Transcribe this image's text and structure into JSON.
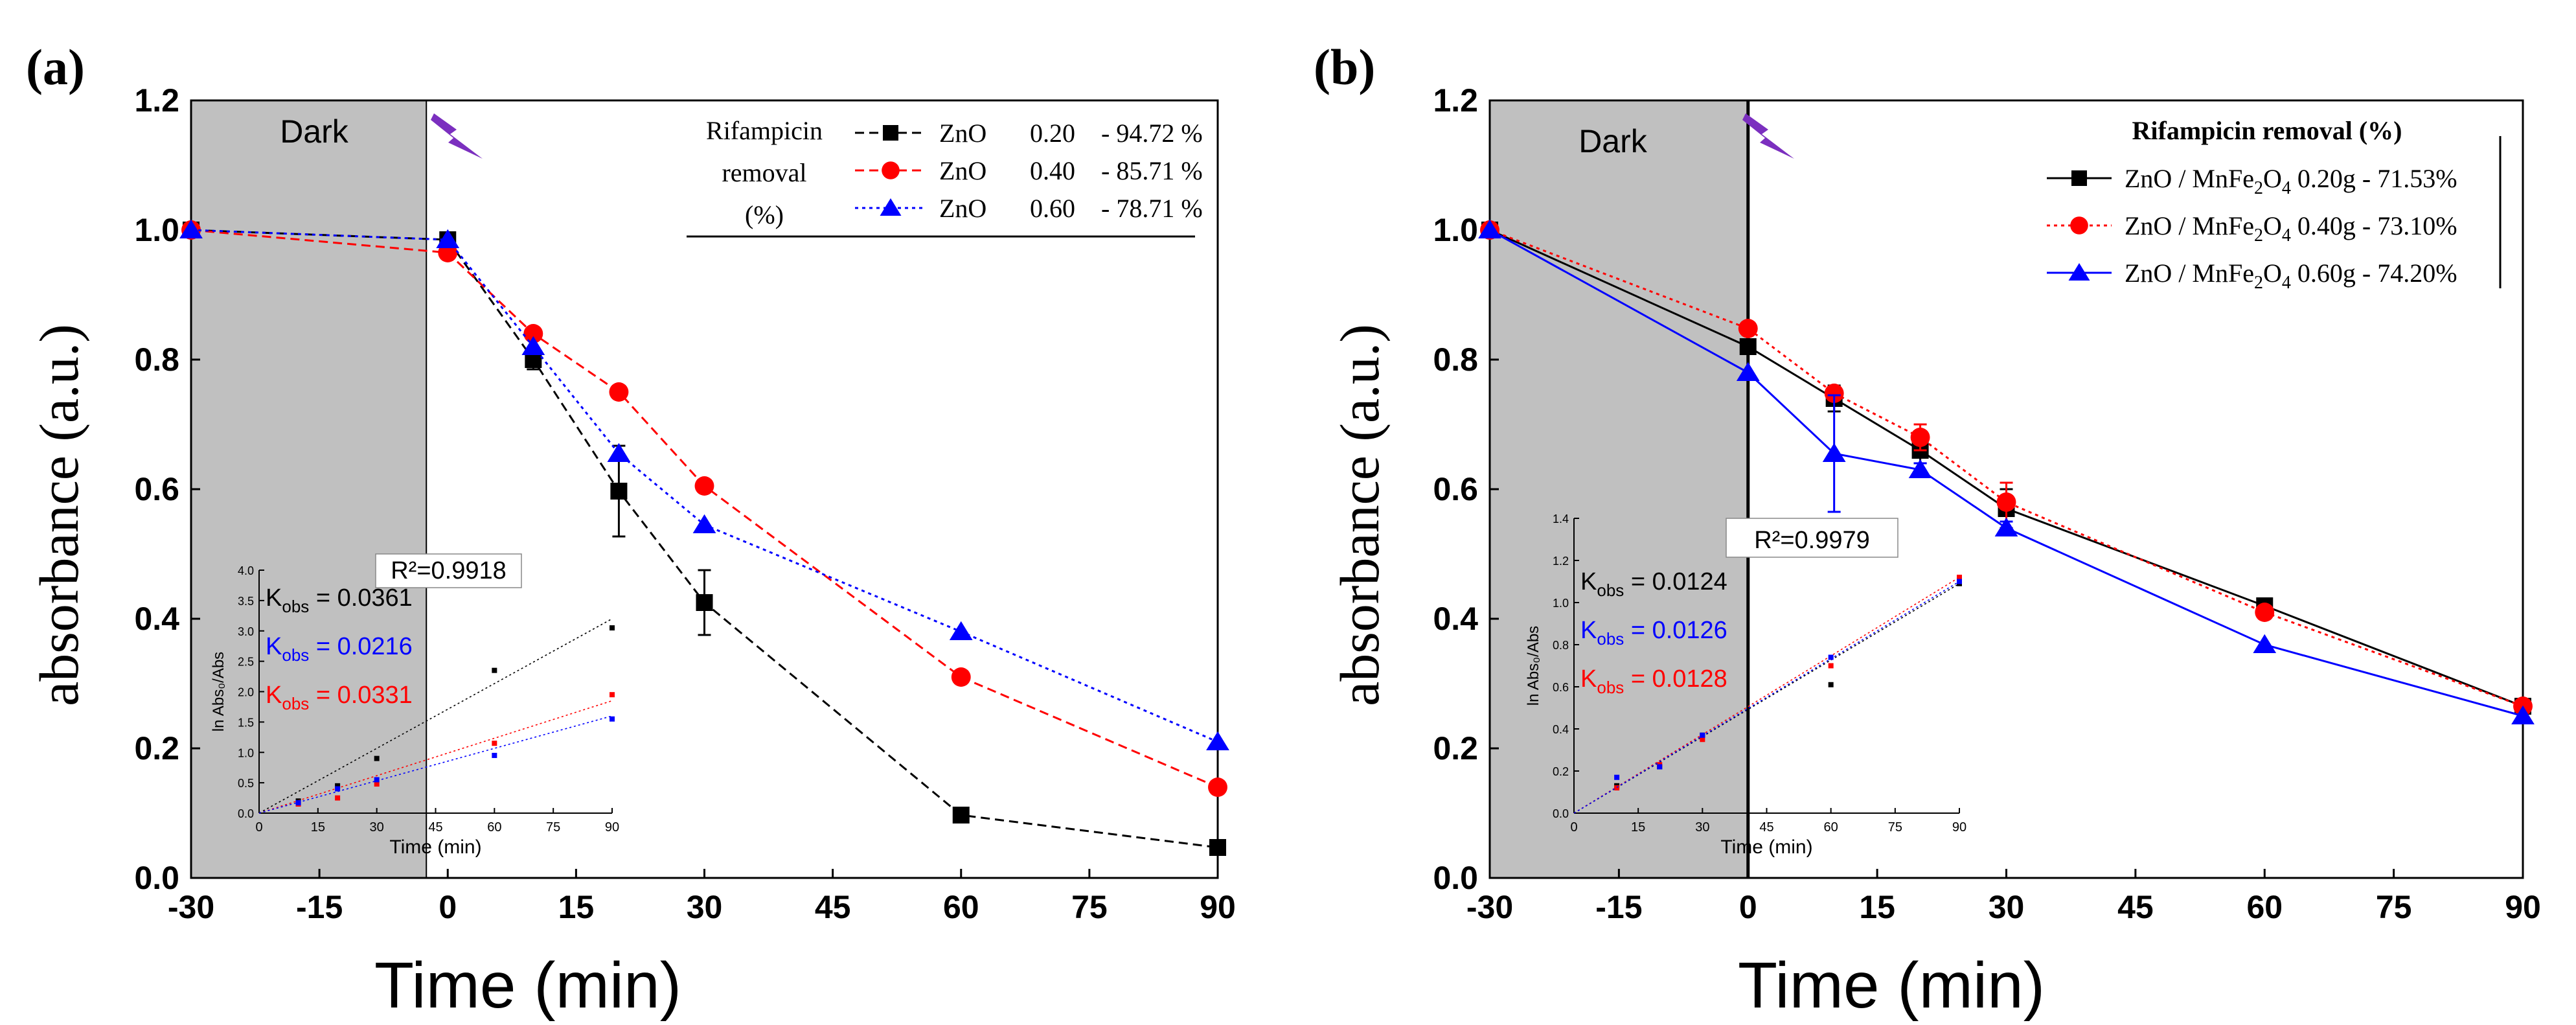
{
  "panels": [
    {
      "panel_label": "(a)",
      "dark_label": "Dark",
      "legend": {
        "header": [
          "Rifampicin",
          "removal",
          "(%)"
        ],
        "entries": [
          {
            "name": "ZnO",
            "mass": "0.20",
            "removal": "- 94.72 %"
          },
          {
            "name": "ZnO",
            "mass": "0.40",
            "removal": "- 85.71 %"
          },
          {
            "name": "ZnO",
            "mass": "0.60",
            "removal": "- 78.71 %"
          }
        ]
      },
      "inset": {
        "r2": "R²=0.9918",
        "kobs": [
          {
            "label": "K",
            "sub": "obs",
            "value": " = 0.0361",
            "color": "#000000"
          },
          {
            "label": "K",
            "sub": "obs",
            "value": " = 0.0216",
            "color": "#0000ff"
          },
          {
            "label": "K",
            "sub": "obs",
            "value": " = 0.0331",
            "color": "#ff0000"
          }
        ],
        "xlabel": "Time (min)",
        "ylabel": "ln Abs₀/Abs",
        "xticks": [
          0,
          15,
          30,
          45,
          60,
          75,
          90
        ],
        "yticks": [
          "0.0",
          "0.5",
          "1.0",
          "1.5",
          "2.0",
          "2.5",
          "3.0",
          "3.5",
          "4.0"
        ]
      }
    },
    {
      "panel_label": "(b)",
      "dark_label": "Dark",
      "legend": {
        "header": [
          "Rifampicin removal (%)"
        ],
        "entries": [
          {
            "name": "ZnO / MnFe",
            "formula_sub1": "2",
            "mid": "O",
            "formula_sub2": "4",
            "mass": " 0.20g",
            "removal": " - 71.53%"
          },
          {
            "name": "ZnO / MnFe",
            "formula_sub1": "2",
            "mid": "O",
            "formula_sub2": "4",
            "mass": " 0.40g",
            "removal": " - 73.10%"
          },
          {
            "name": "ZnO / MnFe",
            "formula_sub1": "2",
            "mid": "O",
            "formula_sub2": "4",
            "mass": " 0.60g",
            "removal": " - 74.20%"
          }
        ]
      },
      "inset": {
        "r2": "R²=0.9979",
        "kobs": [
          {
            "label": "K",
            "sub": "obs",
            "value": " = 0.0124",
            "color": "#000000"
          },
          {
            "label": "K",
            "sub": "obs",
            "value": " = 0.0126",
            "color": "#0000ff"
          },
          {
            "label": "K",
            "sub": "obs",
            "value": " = 0.0128",
            "color": "#ff0000"
          }
        ],
        "xlabel": "Time (min)",
        "ylabel": "ln Abs₀/Abs",
        "xticks": [
          0,
          15,
          30,
          45,
          60,
          75,
          90
        ],
        "yticks": [
          "0.0",
          "0.2",
          "0.4",
          "0.6",
          "0.8",
          "1.0",
          "1.2",
          "1.4"
        ]
      }
    }
  ],
  "chart_data": [
    {
      "type": "line",
      "title": "(a)",
      "xlabel": "Time (min)",
      "ylabel": "absorbance (a.u.)",
      "xlim": [
        -30,
        90
      ],
      "ylim": [
        0.0,
        1.2
      ],
      "xticks": [
        -30,
        -15,
        0,
        15,
        30,
        45,
        60,
        75,
        90
      ],
      "yticks": [
        0.0,
        0.2,
        0.4,
        0.6,
        0.8,
        1.0,
        1.2
      ],
      "dark_region": [
        -30,
        -2.5
      ],
      "x": [
        -30,
        0,
        10,
        20,
        30,
        60,
        90
      ],
      "series": [
        {
          "name": "ZnO 0.20",
          "color": "#000000",
          "marker": "square",
          "dash": "dash",
          "values": [
            1.0,
            0.985,
            0.8,
            0.597,
            0.425,
            0.097,
            0.047
          ],
          "errors": [
            0,
            0.01,
            0.015,
            0.07,
            0.05,
            0.005,
            0.005
          ]
        },
        {
          "name": "ZnO 0.40",
          "color": "#ff0000",
          "marker": "circle",
          "dash": "dash",
          "values": [
            1.0,
            0.965,
            0.84,
            0.75,
            0.605,
            0.31,
            0.14
          ],
          "errors": [
            0,
            0.005,
            0.005,
            0.005,
            0.005,
            0.005,
            0.005
          ]
        },
        {
          "name": "ZnO 0.60",
          "color": "#0000ff",
          "marker": "triangle",
          "dash": "dot",
          "values": [
            1.0,
            0.985,
            0.82,
            0.655,
            0.545,
            0.38,
            0.21
          ],
          "errors": [
            0,
            0.005,
            0.005,
            0.005,
            0.005,
            0.005,
            0.005
          ]
        }
      ],
      "inset": {
        "type": "scatter",
        "xlim": [
          0,
          90
        ],
        "ylim": [
          0,
          4.0
        ],
        "series": [
          {
            "name": "black",
            "color": "#000000",
            "x": [
              10,
              20,
              30,
              60,
              90
            ],
            "y": [
              0.2,
              0.45,
              0.9,
              2.35,
              3.05
            ],
            "fit": [
              0,
              3.2
            ]
          },
          {
            "name": "red",
            "color": "#ff0000",
            "x": [
              10,
              20,
              30,
              60,
              90
            ],
            "y": [
              0.15,
              0.25,
              0.48,
              1.15,
              1.95
            ],
            "fit": [
              0,
              1.85
            ]
          },
          {
            "name": "blue",
            "color": "#0000ff",
            "x": [
              10,
              20,
              30,
              60,
              90
            ],
            "y": [
              0.17,
              0.4,
              0.55,
              0.95,
              1.55
            ],
            "fit": [
              0,
              1.6
            ]
          }
        ]
      }
    },
    {
      "type": "line",
      "title": "(b)",
      "xlabel": "Time (min)",
      "ylabel": "absorbance (a.u.)",
      "xlim": [
        -30,
        90
      ],
      "ylim": [
        0.0,
        1.2
      ],
      "xticks": [
        -30,
        -15,
        0,
        15,
        30,
        45,
        60,
        75,
        90
      ],
      "yticks": [
        0.0,
        0.2,
        0.4,
        0.6,
        0.8,
        1.0,
        1.2
      ],
      "dark_region": [
        -30,
        0
      ],
      "x": [
        -30,
        0,
        10,
        20,
        30,
        60,
        90
      ],
      "series": [
        {
          "name": "ZnO / MnFe2O4 0.20g",
          "color": "#000000",
          "marker": "square",
          "dash": "solid",
          "values": [
            1.0,
            0.82,
            0.74,
            0.66,
            0.57,
            0.42,
            0.265
          ],
          "errors": [
            0,
            0.01,
            0.02,
            0.02,
            0.03,
            0.01,
            0.005
          ]
        },
        {
          "name": "ZnO / MnFe2O4 0.40g",
          "color": "#ff0000",
          "marker": "circle",
          "dash": "dot",
          "values": [
            1.0,
            0.848,
            0.748,
            0.68,
            0.58,
            0.41,
            0.265
          ],
          "errors": [
            0,
            0.005,
            0.01,
            0.02,
            0.03,
            0.01,
            0.005
          ]
        },
        {
          "name": "ZnO / MnFe2O4 0.60g",
          "color": "#0000ff",
          "marker": "triangle",
          "dash": "solid",
          "values": [
            1.0,
            0.78,
            0.655,
            0.63,
            0.54,
            0.36,
            0.25
          ],
          "errors": [
            0,
            0.005,
            0.09,
            0.01,
            0.01,
            0.005,
            0.005
          ]
        }
      ],
      "inset": {
        "type": "scatter",
        "xlim": [
          0,
          90
        ],
        "ylim": [
          0,
          1.4
        ],
        "series": [
          {
            "name": "black",
            "color": "#000000",
            "x": [
              10,
              20,
              30,
              60,
              90
            ],
            "y": [
              0.13,
              0.22,
              0.37,
              0.61,
              1.09
            ],
            "fit": [
              0,
              1.09
            ]
          },
          {
            "name": "red",
            "color": "#ff0000",
            "x": [
              10,
              20,
              30,
              60,
              90
            ],
            "y": [
              0.12,
              0.23,
              0.35,
              0.7,
              1.12
            ],
            "fit": [
              0,
              1.12
            ]
          },
          {
            "name": "blue",
            "color": "#0000ff",
            "x": [
              10,
              20,
              30,
              60,
              90
            ],
            "y": [
              0.17,
              0.22,
              0.37,
              0.74,
              1.1
            ],
            "fit": [
              0,
              1.1
            ]
          }
        ]
      }
    }
  ]
}
